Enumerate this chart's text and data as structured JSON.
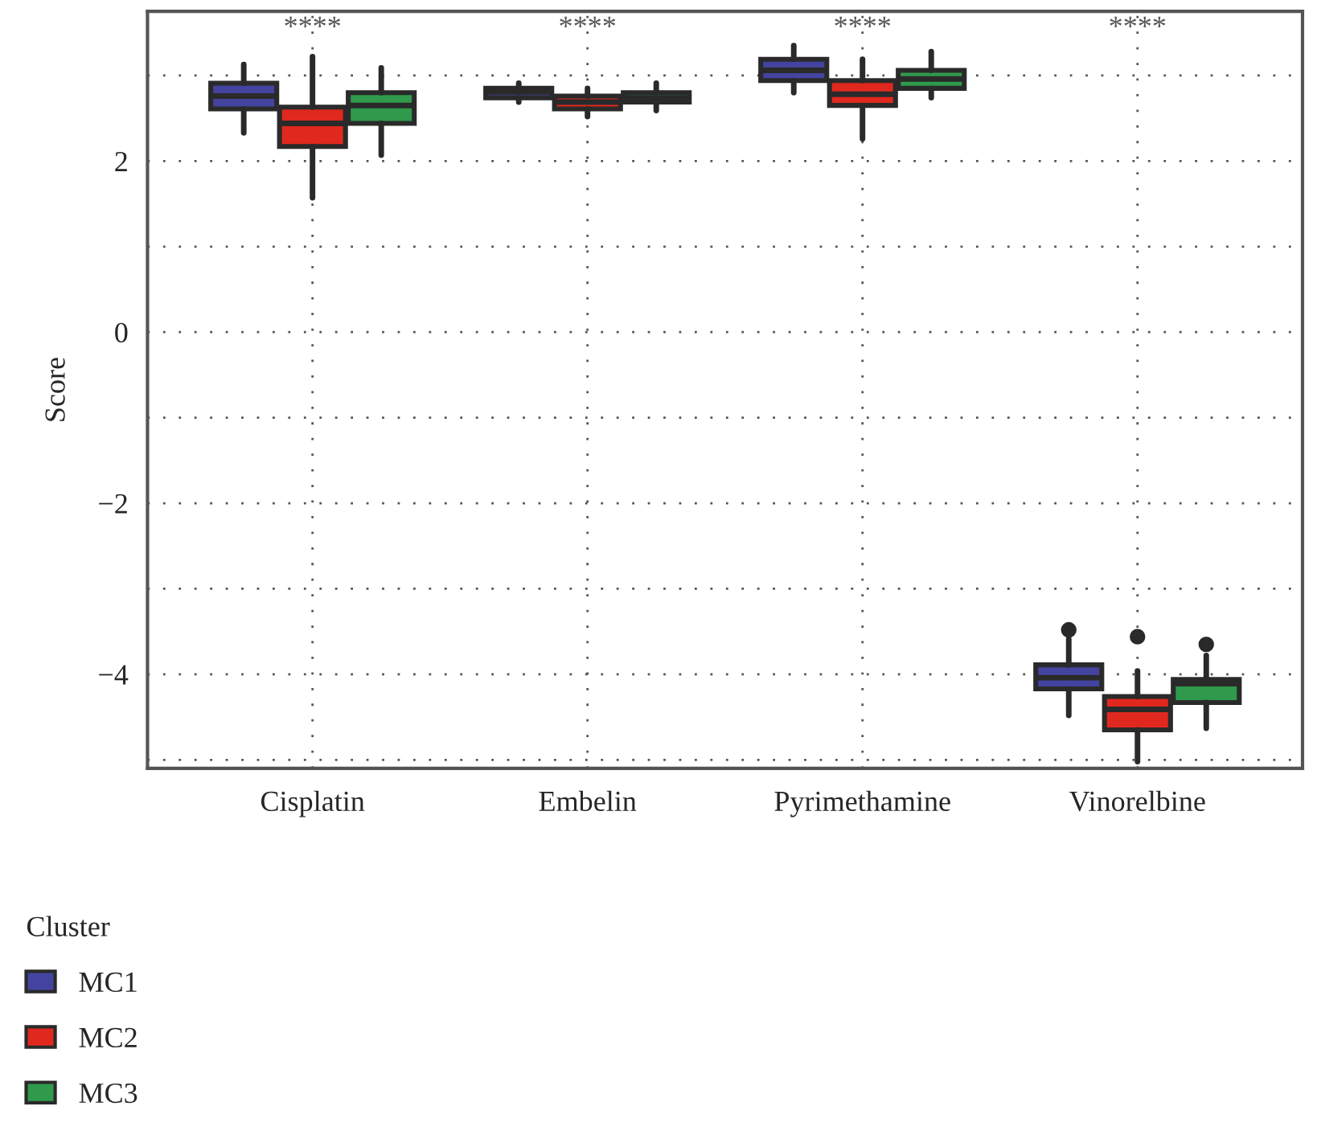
{
  "chart_data": {
    "type": "box",
    "ylabel": "Score",
    "legend_title": "Cluster",
    "legend": "bottom left",
    "grid": true,
    "categories": [
      "Cisplatin",
      "Embelin",
      "Pyrimethamine",
      "Vinorelbine"
    ],
    "ylim": [
      -5.1,
      3.75
    ],
    "yticks": [
      {
        "value": 3,
        "label": null
      },
      2,
      {
        "value": 1,
        "label": null
      },
      0,
      {
        "value": -1,
        "label": null
      },
      {
        "value": -2,
        "label": "−2"
      },
      {
        "value": -3,
        "label": null
      },
      {
        "value": -4,
        "label": "−4"
      },
      {
        "value": -5,
        "label": null
      }
    ],
    "annotations": [
      "****",
      "****",
      "****",
      "****"
    ],
    "series": [
      {
        "name": "MC1",
        "color": "#4444a0",
        "boxes": [
          {
            "low": 2.33,
            "q1": 2.61,
            "median": 2.76,
            "q3": 2.91,
            "high": 3.13
          },
          {
            "low": 2.69,
            "q1": 2.74,
            "median": 2.81,
            "q3": 2.85,
            "high": 2.91
          },
          {
            "low": 2.8,
            "q1": 2.94,
            "median": 3.06,
            "q3": 3.19,
            "high": 3.35
          },
          {
            "low": -4.48,
            "q1": -4.17,
            "median": -4.04,
            "q3": -3.89,
            "high": -3.59,
            "outliers": [
              -3.48
            ]
          }
        ]
      },
      {
        "name": "MC2",
        "color": "#e0281e",
        "boxes": [
          {
            "low": 1.57,
            "q1": 2.17,
            "median": 2.44,
            "q3": 2.63,
            "high": 3.22
          },
          {
            "low": 2.52,
            "q1": 2.61,
            "median": 2.69,
            "q3": 2.76,
            "high": 2.85
          },
          {
            "low": 2.26,
            "q1": 2.65,
            "median": 2.78,
            "q3": 2.94,
            "high": 3.19
          },
          {
            "low": -5.02,
            "q1": -4.65,
            "median": -4.41,
            "q3": -4.26,
            "high": -3.96,
            "outliers": [
              -3.56
            ]
          }
        ]
      },
      {
        "name": "MC3",
        "color": "#2f9a4c",
        "boxes": [
          {
            "low": 2.07,
            "q1": 2.44,
            "median": 2.65,
            "q3": 2.8,
            "high": 3.09
          },
          {
            "low": 2.59,
            "q1": 2.69,
            "median": 2.74,
            "q3": 2.8,
            "high": 2.91
          },
          {
            "low": 2.74,
            "q1": 2.85,
            "median": 2.96,
            "q3": 3.06,
            "high": 3.28
          },
          {
            "low": -4.63,
            "q1": -4.33,
            "median": -4.11,
            "q3": -4.06,
            "high": -3.78,
            "outliers": [
              -3.65
            ]
          }
        ]
      }
    ]
  }
}
